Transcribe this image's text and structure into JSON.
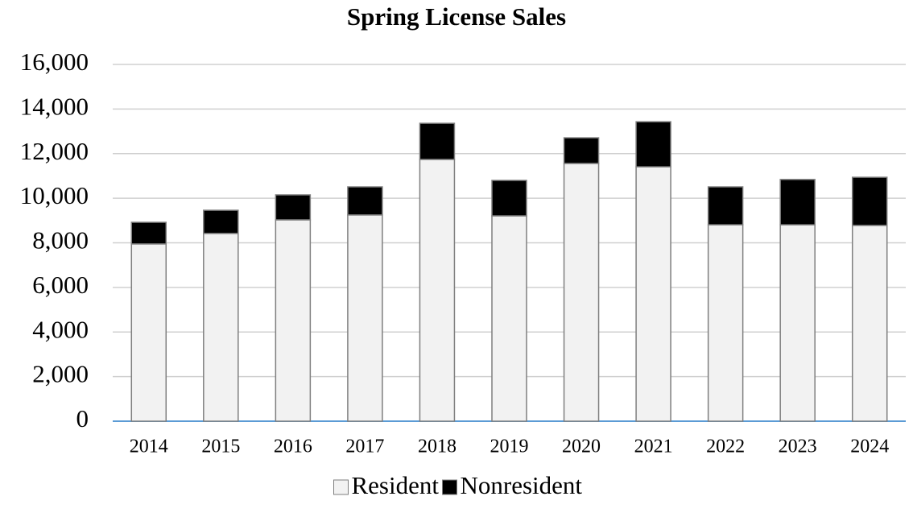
{
  "chart_data": {
    "type": "stacked_bar",
    "title": "Spring License Sales",
    "categories": [
      "2014",
      "2015",
      "2016",
      "2017",
      "2018",
      "2019",
      "2020",
      "2021",
      "2022",
      "2023",
      "2024"
    ],
    "series": [
      {
        "name": "Resident",
        "color": "#f2f2f2",
        "values": [
          7950,
          8420,
          9030,
          9250,
          11740,
          9210,
          11560,
          11410,
          8810,
          8810,
          8780
        ]
      },
      {
        "name": "Nonresident",
        "color": "#000000",
        "values": [
          970,
          1040,
          1120,
          1260,
          1620,
          1590,
          1150,
          2020,
          1700,
          2030,
          2160
        ]
      }
    ],
    "ylim": [
      0,
      16000
    ],
    "yticks": [
      0,
      {
        "value": 2000,
        "label": "2,000"
      },
      {
        "value": 4000,
        "label": "4,000"
      },
      {
        "value": 6000,
        "label": "6,000"
      },
      {
        "value": 8000,
        "label": "8,000"
      },
      {
        "value": 10000,
        "label": "10,000"
      },
      {
        "value": 12000,
        "label": "12,000"
      },
      {
        "value": 14000,
        "label": "14,000"
      },
      {
        "value": 16000,
        "label": "16,000"
      }
    ],
    "grid": true,
    "legend": "bottom"
  }
}
